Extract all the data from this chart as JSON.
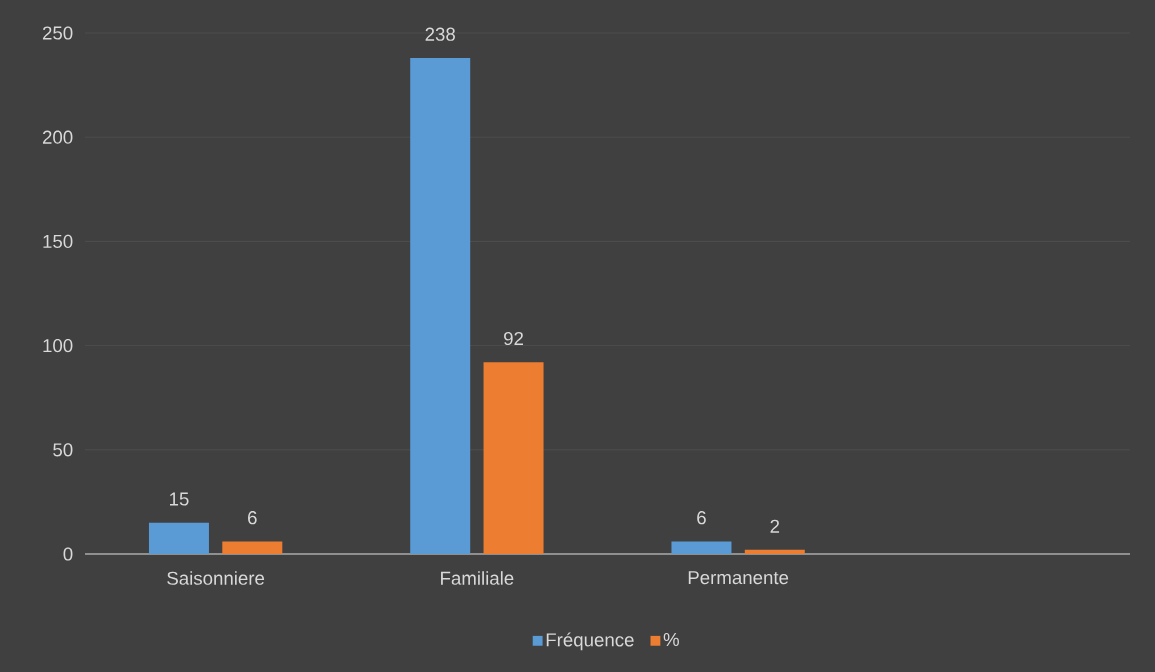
{
  "chart_data": {
    "type": "bar",
    "categories": [
      "Saisonniere",
      "Familiale",
      "Permanente",
      null
    ],
    "series": [
      {
        "name": "Fréquence",
        "color": "#5b9bd5",
        "values": [
          15,
          238,
          6,
          null
        ]
      },
      {
        "name": "%",
        "color": "#ed7d31",
        "values": [
          6,
          92,
          2,
          null
        ]
      }
    ],
    "ylim": [
      0,
      250
    ],
    "yticks": [
      0,
      50,
      100,
      150,
      200,
      250
    ],
    "grid": "y",
    "legend": "bottom",
    "data_labels": true
  }
}
